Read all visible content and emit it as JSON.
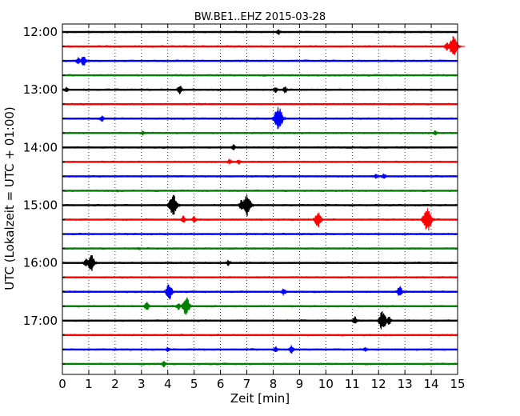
{
  "chart_data": {
    "type": "line",
    "subtype": "seismogram-dayplot",
    "title": "BW.BE1..EHZ 2015-03-28",
    "xlabel": "Zeit  [min]",
    "ylabel": "UTC (Lokalzeit = UTC + 01:00)",
    "xlim": [
      0,
      15
    ],
    "x_ticks": [
      "0",
      "1",
      "2",
      "3",
      "4",
      "5",
      "6",
      "7",
      "8",
      "9",
      "10",
      "11",
      "12",
      "13",
      "14",
      "15"
    ],
    "y_tick_labels": [
      "12:00",
      "13:00",
      "14:00",
      "15:00",
      "16:00",
      "17:00"
    ],
    "grid": "vertical-dotted",
    "color_cycle": [
      "#000000",
      "#ff0000",
      "#0000ff",
      "#008000"
    ],
    "rows": [
      {
        "start": "12:00",
        "events": [
          {
            "t": 8.2,
            "amp": 0.3
          }
        ]
      },
      {
        "start": "12:15",
        "events": [
          {
            "t": 14.85,
            "amp": 1.0
          },
          {
            "t": 14.6,
            "amp": 0.4
          }
        ]
      },
      {
        "start": "12:30",
        "events": [
          {
            "t": 0.6,
            "amp": 0.35
          },
          {
            "t": 0.8,
            "amp": 0.5
          }
        ]
      },
      {
        "start": "12:45",
        "events": []
      },
      {
        "start": "13:00",
        "events": [
          {
            "t": 0.15,
            "amp": 0.3
          },
          {
            "t": 4.45,
            "amp": 0.45
          },
          {
            "t": 8.1,
            "amp": 0.3
          },
          {
            "t": 8.45,
            "amp": 0.35
          }
        ]
      },
      {
        "start": "13:15",
        "events": []
      },
      {
        "start": "13:30",
        "events": [
          {
            "t": 1.5,
            "amp": 0.3
          },
          {
            "t": 8.2,
            "amp": 1.1
          },
          {
            "t": 8.1,
            "amp": 0.4
          }
        ]
      },
      {
        "start": "13:45",
        "events": [
          {
            "t": 3.05,
            "amp": 0.25
          },
          {
            "t": 14.15,
            "amp": 0.3
          }
        ]
      },
      {
        "start": "14:00",
        "events": [
          {
            "t": 6.5,
            "amp": 0.3
          }
        ]
      },
      {
        "start": "14:15",
        "events": [
          {
            "t": 6.35,
            "amp": 0.3
          },
          {
            "t": 6.7,
            "amp": 0.25
          }
        ]
      },
      {
        "start": "14:30",
        "events": [
          {
            "t": 12.2,
            "amp": 0.3
          },
          {
            "t": 11.9,
            "amp": 0.25
          }
        ]
      },
      {
        "start": "14:45",
        "events": [
          {
            "t": 2.1,
            "amp": 0.15
          }
        ]
      },
      {
        "start": "15:00",
        "events": [
          {
            "t": 4.2,
            "amp": 1.0
          },
          {
            "t": 7.0,
            "amp": 1.0
          },
          {
            "t": 6.8,
            "amp": 0.5
          }
        ]
      },
      {
        "start": "15:15",
        "events": [
          {
            "t": 4.6,
            "amp": 0.4
          },
          {
            "t": 5.0,
            "amp": 0.35
          },
          {
            "t": 9.7,
            "amp": 0.75
          },
          {
            "t": 13.85,
            "amp": 1.1
          }
        ]
      },
      {
        "start": "15:30",
        "events": []
      },
      {
        "start": "15:45",
        "events": [
          {
            "t": 2.9,
            "amp": 0.15
          }
        ]
      },
      {
        "start": "16:00",
        "events": [
          {
            "t": 1.1,
            "amp": 0.8
          },
          {
            "t": 0.9,
            "amp": 0.4
          },
          {
            "t": 6.3,
            "amp": 0.3
          }
        ]
      },
      {
        "start": "16:15",
        "events": []
      },
      {
        "start": "16:30",
        "events": [
          {
            "t": 4.05,
            "amp": 0.75
          },
          {
            "t": 8.4,
            "amp": 0.35
          },
          {
            "t": 12.8,
            "amp": 0.55
          }
        ]
      },
      {
        "start": "16:45",
        "events": [
          {
            "t": 3.2,
            "amp": 0.45
          },
          {
            "t": 4.7,
            "amp": 0.85
          },
          {
            "t": 4.4,
            "amp": 0.35
          }
        ]
      },
      {
        "start": "17:00",
        "events": [
          {
            "t": 11.1,
            "amp": 0.4
          },
          {
            "t": 12.15,
            "amp": 0.9
          },
          {
            "t": 12.4,
            "amp": 0.4
          }
        ]
      },
      {
        "start": "17:15",
        "events": []
      },
      {
        "start": "17:30",
        "events": [
          {
            "t": 4.0,
            "amp": 0.25
          },
          {
            "t": 8.1,
            "amp": 0.3
          },
          {
            "t": 8.7,
            "amp": 0.4
          },
          {
            "t": 11.5,
            "amp": 0.25
          }
        ]
      },
      {
        "start": "17:45",
        "events": [
          {
            "t": 3.85,
            "amp": 0.3
          }
        ]
      }
    ]
  }
}
